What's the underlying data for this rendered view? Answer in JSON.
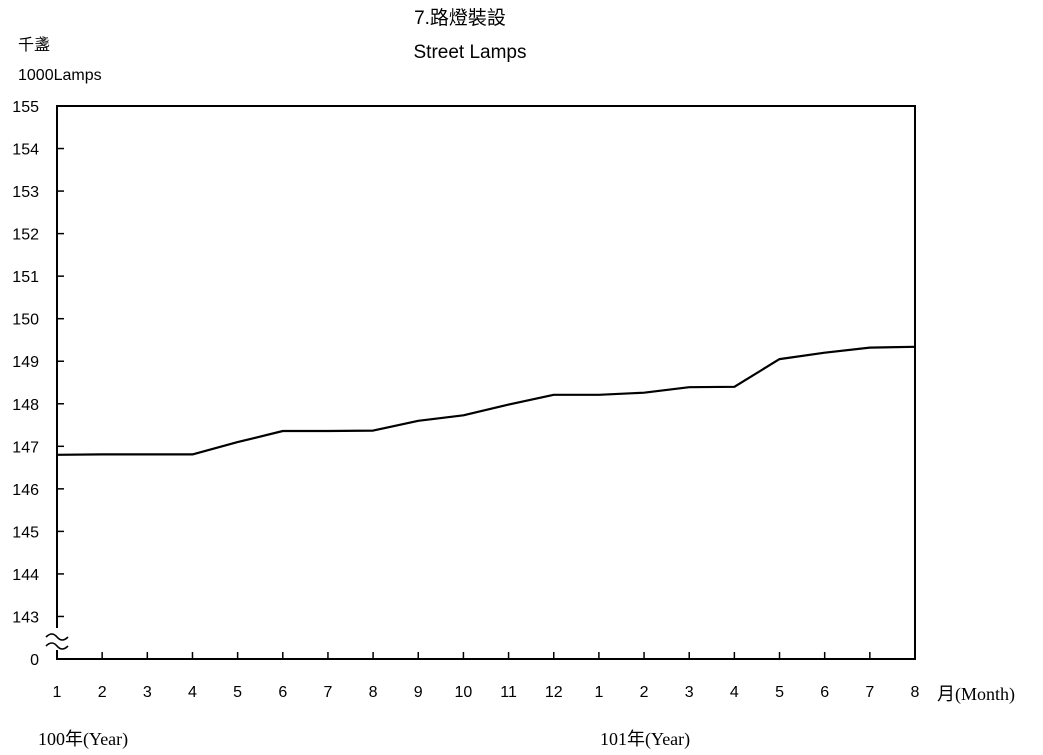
{
  "chart_data": {
    "type": "line",
    "title": "7.路燈裝設",
    "subtitle": "Street Lamps",
    "ylabel_zh": "千盞",
    "ylabel": "1000Lamps",
    "xlabel": "月(Month)",
    "y_ticks": [
      "0",
      "143",
      "144",
      "145",
      "146",
      "147",
      "148",
      "149",
      "150",
      "151",
      "152",
      "153",
      "154",
      "155"
    ],
    "ylim": [
      142,
      155
    ],
    "axis_break": true,
    "grid": false,
    "x": [
      "1",
      "2",
      "3",
      "4",
      "5",
      "6",
      "7",
      "8",
      "9",
      "10",
      "11",
      "12",
      "1",
      "2",
      "3",
      "4",
      "5",
      "6",
      "7",
      "8"
    ],
    "year_groups": [
      {
        "label": "100年(Year)",
        "start_index": 0
      },
      {
        "label": "101年(Year)",
        "start_index": 12
      }
    ],
    "series": [
      {
        "values": [
          146.8,
          146.81,
          146.81,
          146.81,
          147.1,
          147.36,
          147.36,
          147.37,
          147.6,
          147.73,
          147.98,
          148.21,
          148.21,
          148.26,
          148.39,
          148.4,
          149.05,
          149.2,
          149.32,
          149.34
        ],
        "color": "#000000"
      }
    ]
  }
}
